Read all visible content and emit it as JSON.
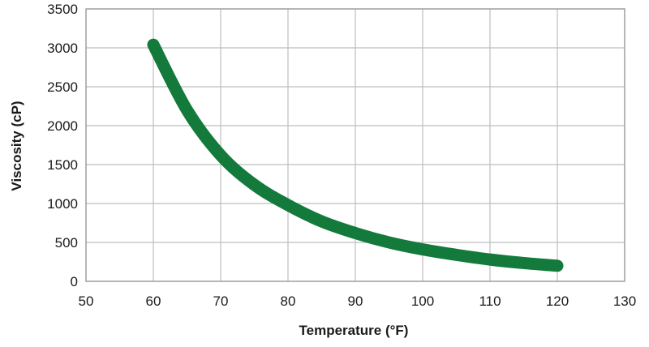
{
  "chart_data": {
    "type": "line",
    "title": "",
    "xlabel": "Temperature (°F)",
    "ylabel": "Viscosity (cP)",
    "xlim": [
      50,
      130
    ],
    "ylim": [
      0,
      3500
    ],
    "xticks": [
      "50",
      "60",
      "70",
      "80",
      "90",
      "100",
      "110",
      "120",
      "130"
    ],
    "yticks": [
      "0",
      "500",
      "1000",
      "1500",
      "2000",
      "2500",
      "3000",
      "3500"
    ],
    "grid": true,
    "legend": "none",
    "series": [
      {
        "name": "Viscosity",
        "color": "#137a3c",
        "x": [
          60,
          65,
          70,
          75,
          80,
          85,
          90,
          95,
          100,
          105,
          110,
          115,
          120
        ],
        "values": [
          3040,
          2200,
          1620,
          1240,
          980,
          770,
          620,
          500,
          410,
          340,
          280,
          235,
          200
        ]
      }
    ]
  },
  "colors": {
    "grid": "#bdbdbd",
    "frame": "#9e9e9e",
    "text": "#1a1a1a"
  }
}
